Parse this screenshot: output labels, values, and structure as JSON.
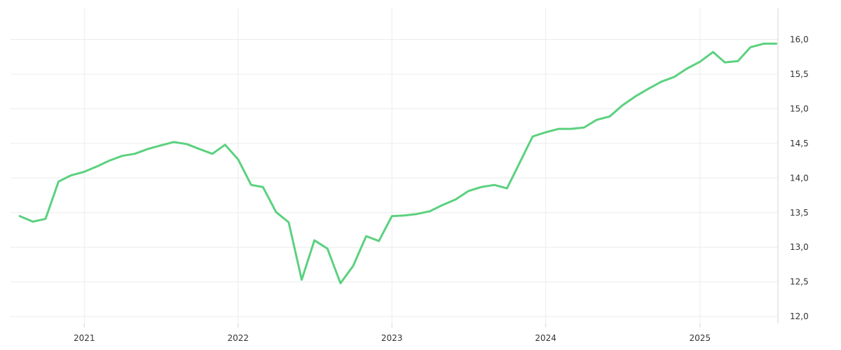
{
  "chart_data": {
    "type": "line",
    "title": "",
    "xlabel": "",
    "ylabel": "",
    "ylim": [
      11.9,
      16.45
    ],
    "xlim": [
      "2020-07-10",
      "2025-07-05"
    ],
    "grid": true,
    "y_axis_position": "right",
    "line_color": "#5bd17f",
    "y_ticks": [
      {
        "value": 12.0,
        "label": "12,0"
      },
      {
        "value": 12.5,
        "label": "12,5"
      },
      {
        "value": 13.0,
        "label": "13,0"
      },
      {
        "value": 13.5,
        "label": "13,5"
      },
      {
        "value": 14.0,
        "label": "14,0"
      },
      {
        "value": 14.5,
        "label": "14,5"
      },
      {
        "value": 15.0,
        "label": "15,0"
      },
      {
        "value": 15.5,
        "label": "15,5"
      },
      {
        "value": 16.0,
        "label": "16,0"
      }
    ],
    "x_ticks": [
      {
        "value": "2021-01-01",
        "label": "2021"
      },
      {
        "value": "2022-01-01",
        "label": "2022"
      },
      {
        "value": "2023-01-01",
        "label": "2023"
      },
      {
        "value": "2024-01-01",
        "label": "2024"
      },
      {
        "value": "2025-01-01",
        "label": "2025"
      }
    ],
    "series": [
      {
        "x": [
          "2020-08-01",
          "2020-09-01",
          "2020-10-01",
          "2020-11-01",
          "2020-12-01",
          "2021-01-01",
          "2021-02-01",
          "2021-03-01",
          "2021-04-01",
          "2021-05-01",
          "2021-06-01",
          "2021-07-01",
          "2021-08-01",
          "2021-09-01",
          "2021-10-01",
          "2021-11-01",
          "2021-12-01",
          "2022-01-01",
          "2022-02-01",
          "2022-03-01",
          "2022-04-01",
          "2022-05-01",
          "2022-06-01",
          "2022-07-01",
          "2022-08-01",
          "2022-09-01",
          "2022-10-01",
          "2022-11-01",
          "2022-12-01",
          "2023-01-01",
          "2023-02-01",
          "2023-03-01",
          "2023-04-01",
          "2023-05-01",
          "2023-06-01",
          "2023-07-01",
          "2023-08-01",
          "2023-09-01",
          "2023-10-01",
          "2023-11-01",
          "2023-12-01",
          "2024-01-01",
          "2024-02-01",
          "2024-03-01",
          "2024-04-01",
          "2024-05-01",
          "2024-06-01",
          "2024-07-01",
          "2024-08-01",
          "2024-09-01",
          "2024-10-01",
          "2024-11-01",
          "2024-12-01",
          "2025-01-01",
          "2025-02-01",
          "2025-03-01",
          "2025-04-01",
          "2025-05-01",
          "2025-06-01",
          "2025-07-01"
        ],
        "values": [
          13.45,
          13.37,
          13.41,
          13.95,
          14.04,
          14.09,
          14.17,
          14.25,
          14.32,
          14.35,
          14.42,
          14.47,
          14.52,
          14.49,
          14.42,
          14.35,
          14.48,
          14.27,
          13.9,
          13.87,
          13.51,
          13.36,
          12.53,
          13.1,
          12.98,
          12.48,
          12.73,
          13.16,
          13.09,
          13.45,
          13.46,
          13.48,
          13.52,
          13.61,
          13.69,
          13.81,
          13.87,
          13.9,
          13.85,
          14.23,
          14.6,
          14.66,
          14.71,
          14.71,
          14.73,
          14.84,
          14.89,
          15.05,
          15.18,
          15.29,
          15.39,
          15.46,
          15.58,
          15.68,
          15.82,
          15.67,
          15.69,
          15.89,
          15.94,
          15.94
        ]
      }
    ]
  }
}
